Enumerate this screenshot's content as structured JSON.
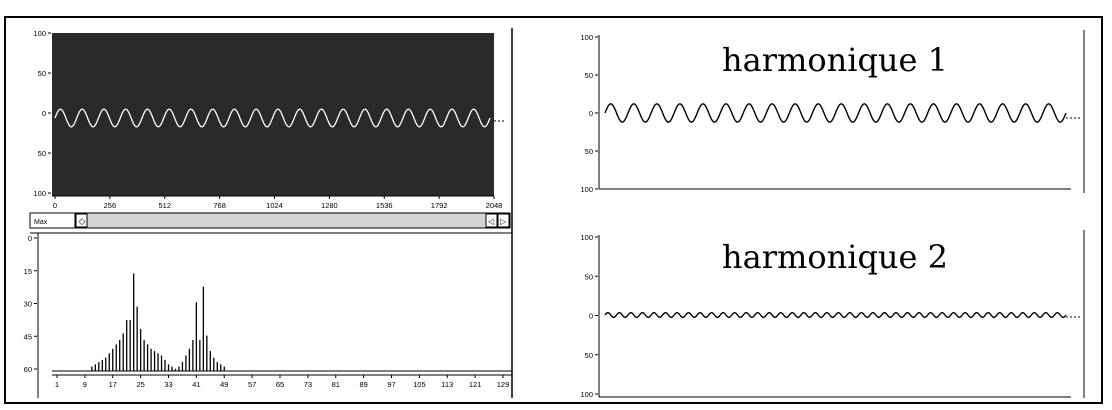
{
  "chart_data": [
    {
      "type": "line",
      "panel": "signal",
      "y_ticks": [
        "100",
        "50",
        "0",
        "50",
        "100"
      ],
      "x_ticks": [
        "0",
        "256",
        "512",
        "768",
        "1024",
        "1280",
        "1536",
        "1792",
        "2048"
      ],
      "xlim": [
        0,
        2048
      ],
      "ylim": [
        -100,
        100
      ],
      "background": "#2a2a2a",
      "series": [
        {
          "cycles": 20,
          "values": [
            0,
            11,
            0,
            -11,
            0
          ]
        }
      ]
    },
    {
      "type": "bar",
      "panel": "spectrum",
      "y_ticks": [
        "0",
        "15",
        "30",
        "45",
        "60"
      ],
      "x_ticks": [
        "1",
        "9",
        "17",
        "25",
        "33",
        "41",
        "49",
        "57",
        "65",
        "73",
        "81",
        "89",
        "97",
        "105",
        "113",
        "121",
        "129"
      ],
      "ylim": [
        0,
        60
      ],
      "categories": [
        11,
        12,
        13,
        14,
        15,
        16,
        17,
        18,
        19,
        20,
        21,
        22,
        23,
        24,
        25,
        26,
        27,
        28,
        29,
        30,
        31,
        32,
        33,
        34,
        35,
        36,
        37,
        38,
        39,
        40,
        41,
        42,
        43,
        44,
        45,
        46,
        47,
        48,
        49
      ],
      "values": [
        2,
        3,
        4,
        5,
        6,
        8,
        10,
        12,
        14,
        17,
        23,
        23,
        44,
        29,
        19,
        14,
        12,
        10,
        9,
        8,
        7,
        5,
        3,
        2,
        1,
        2,
        4,
        7,
        10,
        14,
        31,
        14,
        38,
        16,
        9,
        6,
        4,
        3,
        2
      ]
    },
    {
      "type": "line",
      "panel": "harmonique 1",
      "title": "harmonique 1",
      "y_ticks": [
        "100",
        "50",
        "0",
        "50",
        "100"
      ],
      "ylim": [
        -100,
        100
      ],
      "series": [
        {
          "name": "harmonique 1",
          "cycles": 20,
          "amplitude": 12
        }
      ]
    },
    {
      "type": "line",
      "panel": "harmonique 2",
      "title": "harmonique 2",
      "y_ticks": [
        "100",
        "50",
        "0",
        "50",
        "100"
      ],
      "ylim": [
        -100,
        100
      ],
      "series": [
        {
          "name": "harmonique 2",
          "cycles": 40,
          "amplitude": 3
        }
      ]
    }
  ],
  "scrollbar": {
    "label": "Max"
  }
}
